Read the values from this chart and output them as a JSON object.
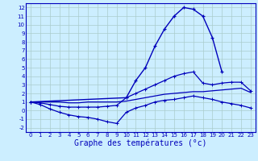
{
  "xlabel": "Graphe des températures (°c)",
  "line_color": "#0000bb",
  "bg_color": "#cceeff",
  "grid_color": "#aacccc",
  "spine_color": "#0000bb",
  "ylim": [
    -2.5,
    12.5
  ],
  "yticks": [
    -2,
    -1,
    0,
    1,
    2,
    3,
    4,
    5,
    6,
    7,
    8,
    9,
    10,
    11,
    12
  ],
  "xlim": [
    -0.5,
    23.5
  ],
  "xticks": [
    0,
    1,
    2,
    3,
    4,
    5,
    6,
    7,
    8,
    9,
    10,
    11,
    12,
    13,
    14,
    15,
    16,
    17,
    18,
    19,
    20,
    21,
    22,
    23
  ],
  "curve_main_x": [
    0,
    10,
    11,
    12,
    13,
    14,
    15,
    16,
    17,
    18,
    19,
    20
  ],
  "curve_main_y": [
    1.0,
    1.5,
    3.5,
    5.0,
    7.5,
    9.5,
    11.0,
    12.0,
    11.8,
    11.0,
    8.5,
    4.5
  ],
  "curve_upper_x": [
    0,
    1,
    2,
    3,
    4,
    5,
    6,
    7,
    8,
    9,
    10,
    11,
    12,
    13,
    14,
    15,
    16,
    17,
    18,
    19,
    20,
    21,
    22,
    23
  ],
  "curve_upper_y": [
    1.0,
    0.9,
    0.7,
    0.5,
    0.4,
    0.4,
    0.4,
    0.4,
    0.5,
    0.6,
    1.5,
    2.0,
    2.5,
    3.0,
    3.5,
    4.0,
    4.3,
    4.5,
    3.2,
    3.0,
    3.2,
    3.3,
    3.3,
    2.3
  ],
  "curve_lower_x": [
    0,
    1,
    2,
    3,
    4,
    5,
    6,
    7,
    8,
    9,
    10,
    11,
    12,
    13,
    14,
    15,
    16,
    17,
    18,
    19,
    20,
    21,
    22,
    23
  ],
  "curve_lower_y": [
    1.0,
    0.7,
    0.2,
    -0.2,
    -0.5,
    -0.7,
    -0.8,
    -1.0,
    -1.3,
    -1.5,
    -0.2,
    0.3,
    0.6,
    1.0,
    1.2,
    1.3,
    1.5,
    1.7,
    1.5,
    1.3,
    1.0,
    0.8,
    0.6,
    0.3
  ],
  "curve_flat_x": [
    0,
    1,
    2,
    3,
    4,
    5,
    6,
    7,
    8,
    9,
    10,
    11,
    12,
    13,
    14,
    15,
    16,
    17,
    18,
    19,
    20,
    21,
    22,
    23
  ],
  "curve_flat_y": [
    1.0,
    1.0,
    1.0,
    1.0,
    0.9,
    0.9,
    1.0,
    1.0,
    1.0,
    1.0,
    1.1,
    1.3,
    1.5,
    1.7,
    1.9,
    2.0,
    2.1,
    2.2,
    2.2,
    2.3,
    2.4,
    2.5,
    2.6,
    2.1
  ],
  "xlabel_fontsize": 7,
  "tick_fontsize": 5,
  "linewidth_main": 1.0,
  "linewidth_other": 0.9,
  "markersize_main": 3.0,
  "markersize_other": 2.5
}
